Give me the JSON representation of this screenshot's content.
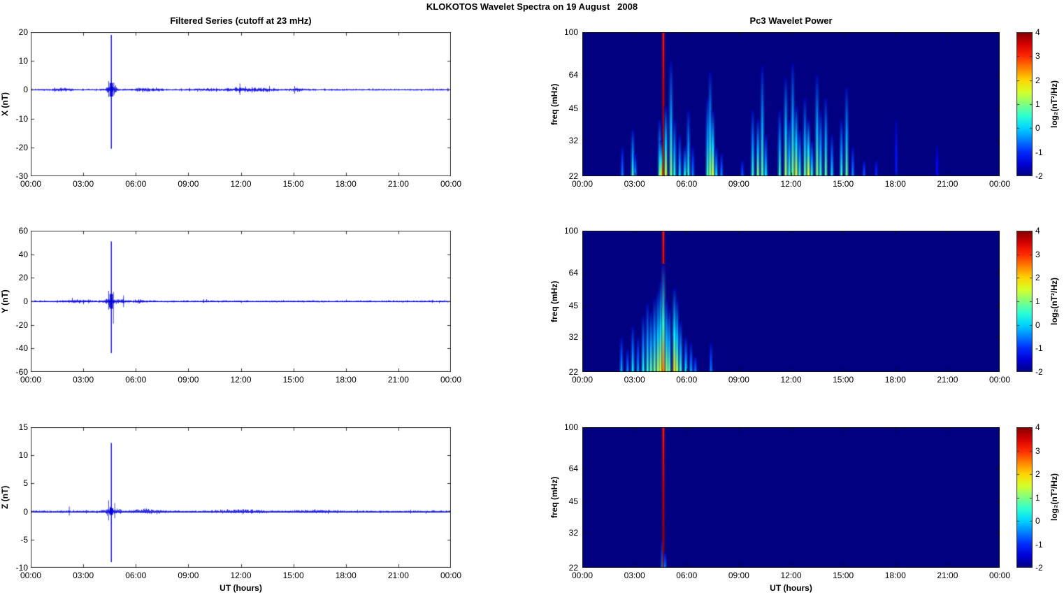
{
  "figure": {
    "title": "KLOKOTOS Wavelet Spectra on 19 August   2008",
    "background": "#ffffff",
    "line_color": "#0000ee",
    "heatmap_background": "#000090",
    "axis_color": "#333333"
  },
  "axes": {
    "x_ticks": [
      "00:00",
      "03:00",
      "06:00",
      "09:00",
      "12:00",
      "15:00",
      "18:00",
      "21:00",
      "00:00"
    ],
    "x_hours": [
      0,
      3,
      6,
      9,
      12,
      15,
      18,
      21,
      24
    ],
    "x_range_hours": [
      0,
      24
    ],
    "xlabel": "UT (hours)"
  },
  "colorbar": {
    "label": "log₂(nT²/Hz)",
    "ticks": [
      4,
      3,
      2,
      1,
      0,
      -1,
      -2
    ],
    "clim": [
      -2,
      4
    ],
    "colormap": "jet"
  },
  "chart_data": [
    {
      "id": "ts-x",
      "type": "line",
      "row": 0,
      "title": "Filtered Series (cutoff at 23 mHz)",
      "ylabel": "X (nT)",
      "ylim": [
        -30,
        20
      ],
      "yticks": [
        20,
        10,
        0,
        -10,
        -20,
        -30
      ],
      "noise_amp": 0.3,
      "spike": {
        "t": 4.6,
        "max": 19,
        "min": -20.5
      },
      "minor_spikes": [
        {
          "t": 4.45,
          "max": 3,
          "min": -2.5
        },
        {
          "t": 4.75,
          "max": 2.5,
          "min": -2
        },
        {
          "t": 11.95,
          "max": 2.2,
          "min": -1.8
        }
      ],
      "bursts": [
        {
          "t": 1.8,
          "a": 0.5,
          "w": 0.5
        },
        {
          "t": 4.6,
          "a": 1.1,
          "w": 0.35
        },
        {
          "t": 6.6,
          "a": 0.45,
          "w": 0.8
        },
        {
          "t": 9.9,
          "a": 0.4,
          "w": 0.6
        },
        {
          "t": 11.9,
          "a": 0.65,
          "w": 0.8
        },
        {
          "t": 13.3,
          "a": 0.55,
          "w": 0.7
        },
        {
          "t": 15.2,
          "a": 0.45,
          "w": 0.5
        }
      ]
    },
    {
      "id": "ts-y",
      "type": "line",
      "row": 1,
      "ylabel": "Y (nT)",
      "ylim": [
        -60,
        60
      ],
      "yticks": [
        60,
        40,
        20,
        0,
        -20,
        -40,
        -60
      ],
      "noise_amp": 0.8,
      "spike": {
        "t": 4.6,
        "max": 51,
        "min": -44
      },
      "minor_spikes": [
        {
          "t": 4.45,
          "max": 9,
          "min": -7
        },
        {
          "t": 4.72,
          "max": 8,
          "min": -19
        },
        {
          "t": 5.3,
          "max": 5,
          "min": -5
        }
      ],
      "bursts": [
        {
          "t": 2.6,
          "a": 0.8,
          "w": 0.7
        },
        {
          "t": 4.6,
          "a": 2.5,
          "w": 0.4
        },
        {
          "t": 5.3,
          "a": 1.2,
          "w": 0.3
        },
        {
          "t": 6.2,
          "a": 0.8,
          "w": 0.4
        }
      ]
    },
    {
      "id": "ts-z",
      "type": "line",
      "row": 2,
      "ylabel": "Z (nT)",
      "ylim": [
        -10,
        15
      ],
      "yticks": [
        15,
        10,
        5,
        0,
        -5,
        -10
      ],
      "noise_amp": 0.18,
      "spike": {
        "t": 4.6,
        "max": 12.2,
        "min": -9
      },
      "minor_spikes": [
        {
          "t": 2.2,
          "max": 0.9,
          "min": -0.7
        },
        {
          "t": 4.45,
          "max": 2,
          "min": -1.6
        },
        {
          "t": 4.8,
          "max": 1.5,
          "min": -1.2
        }
      ],
      "bursts": [
        {
          "t": 4.6,
          "a": 0.7,
          "w": 0.4
        },
        {
          "t": 6.6,
          "a": 0.3,
          "w": 0.8
        },
        {
          "t": 12.0,
          "a": 0.28,
          "w": 1.2
        },
        {
          "t": 16.0,
          "a": 0.2,
          "w": 0.8
        }
      ]
    },
    {
      "id": "wav-x",
      "type": "heatmap",
      "row": 0,
      "title": "Pc3 Wavelet Power",
      "ylabel": "freq (mHz)",
      "yticks": [
        100,
        64,
        45,
        32,
        22
      ],
      "flim_mHz": [
        22,
        100
      ],
      "yscale": "log",
      "clim": [
        -2,
        4
      ],
      "events": [
        [
          2.3,
          30,
          -0.5
        ],
        [
          2.9,
          36,
          0.6
        ],
        [
          3.05,
          28,
          -0.3
        ],
        [
          4.45,
          40,
          0.6
        ],
        [
          4.55,
          32,
          1.8
        ],
        [
          4.66,
          100,
          4
        ],
        [
          4.8,
          46,
          1.4
        ],
        [
          5.1,
          74,
          1.0
        ],
        [
          5.3,
          40,
          0.5
        ],
        [
          5.6,
          34,
          0.1
        ],
        [
          5.9,
          30,
          0.4
        ],
        [
          6.1,
          44,
          0.5
        ],
        [
          6.35,
          30,
          -0.4
        ],
        [
          7.2,
          50,
          0.6
        ],
        [
          7.35,
          66,
          1.0
        ],
        [
          7.5,
          44,
          1.5
        ],
        [
          7.7,
          30,
          0.2
        ],
        [
          8.0,
          28,
          -0.4
        ],
        [
          9.2,
          26,
          -0.7
        ],
        [
          9.8,
          44,
          0.5
        ],
        [
          10.1,
          40,
          1.0
        ],
        [
          10.35,
          70,
          0.8
        ],
        [
          10.55,
          34,
          0.2
        ],
        [
          11.35,
          44,
          0.6
        ],
        [
          11.7,
          62,
          1.2
        ],
        [
          11.9,
          40,
          0.6
        ],
        [
          12.1,
          72,
          1.0
        ],
        [
          12.3,
          46,
          1.5
        ],
        [
          12.5,
          36,
          0.6
        ],
        [
          12.8,
          50,
          0.8
        ],
        [
          13.0,
          40,
          1.6
        ],
        [
          13.2,
          32,
          0.5
        ],
        [
          13.5,
          64,
          1.0
        ],
        [
          13.7,
          44,
          0.6
        ],
        [
          14.0,
          50,
          0.8
        ],
        [
          14.35,
          34,
          0.1
        ],
        [
          14.9,
          40,
          0.5
        ],
        [
          15.2,
          56,
          0.8
        ],
        [
          15.55,
          30,
          -0.4
        ],
        [
          16.2,
          26,
          -0.7
        ],
        [
          16.9,
          26,
          -1.0
        ],
        [
          18.05,
          40,
          -1.1
        ],
        [
          20.4,
          30,
          -1.2
        ]
      ]
    },
    {
      "id": "wav-y",
      "type": "heatmap",
      "row": 1,
      "ylabel": "freq (mHz)",
      "yticks": [
        100,
        64,
        45,
        32,
        22
      ],
      "flim_mHz": [
        22,
        100
      ],
      "yscale": "log",
      "clim": [
        -2,
        4
      ],
      "events": [
        [
          2.25,
          32,
          -0.2
        ],
        [
          2.6,
          28,
          -0.4
        ],
        [
          2.9,
          36,
          0.2
        ],
        [
          3.2,
          32,
          -0.2
        ],
        [
          3.5,
          40,
          0.4
        ],
        [
          3.75,
          46,
          0.6
        ],
        [
          3.95,
          42,
          0.8
        ],
        [
          4.15,
          48,
          1.0
        ],
        [
          4.35,
          52,
          1.2
        ],
        [
          4.5,
          58,
          1.5
        ],
        [
          4.66,
          100,
          4
        ],
        [
          4.66,
          70,
          2.5
        ],
        [
          4.85,
          48,
          1.1
        ],
        [
          5.0,
          44,
          0.9
        ],
        [
          5.3,
          54,
          2.0
        ],
        [
          5.45,
          48,
          1.2
        ],
        [
          5.65,
          38,
          0.6
        ],
        [
          5.95,
          32,
          0.2
        ],
        [
          6.25,
          30,
          -0.2
        ],
        [
          6.5,
          26,
          -0.5
        ],
        [
          7.4,
          30,
          -0.5
        ]
      ]
    },
    {
      "id": "wav-z",
      "type": "heatmap",
      "row": 2,
      "ylabel": "freq (mHz)",
      "yticks": [
        100,
        64,
        45,
        32,
        22
      ],
      "flim_mHz": [
        22,
        100
      ],
      "yscale": "log",
      "clim": [
        -2,
        4
      ],
      "events": [
        [
          4.6,
          30,
          -0.3
        ],
        [
          4.66,
          100,
          4
        ],
        [
          4.75,
          26,
          -0.5
        ]
      ]
    }
  ]
}
